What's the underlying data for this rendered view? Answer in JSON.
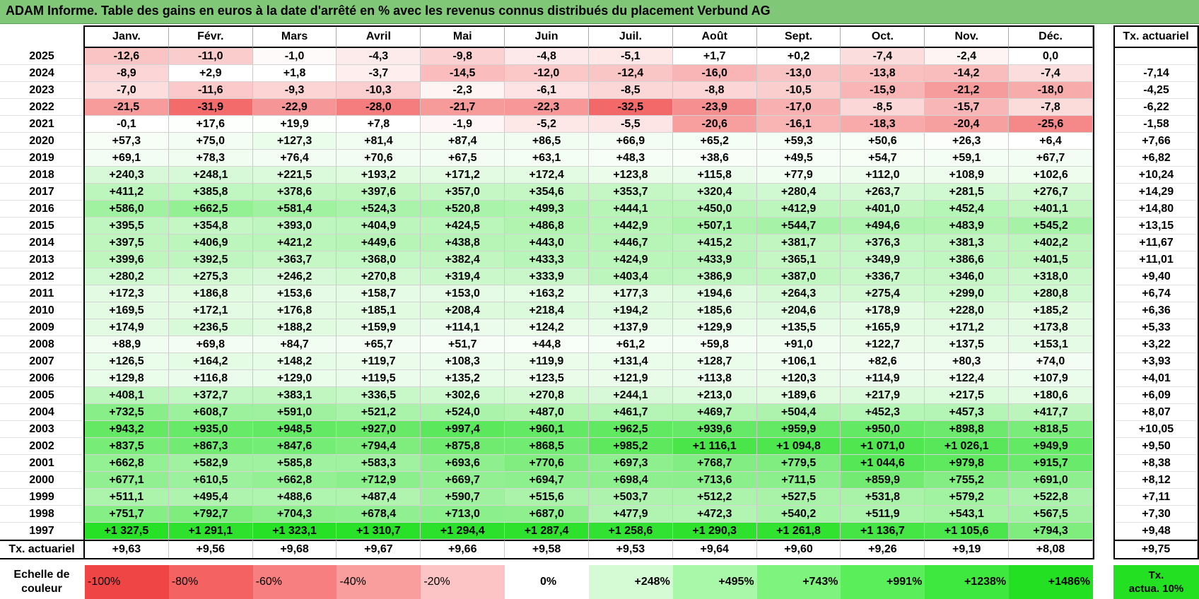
{
  "title": "ADAM Informe. Table des gains en euros à la date d'arrêté en % avec les revenus connus distribués du placement Verbund AG",
  "months": [
    "Janv.",
    "Févr.",
    "Mars",
    "Avril",
    "Mai",
    "Juin",
    "Juil.",
    "Août",
    "Sept.",
    "Oct.",
    "Nov.",
    "Déc."
  ],
  "actuarial_header": "Tx. actuariel",
  "rows": [
    {
      "year": "2025",
      "values": [
        "-12,6",
        "-11,0",
        "-1,0",
        "-4,3",
        "-9,8",
        "-4,8",
        "-5,1",
        "+1,7",
        "+0,2",
        "-7,4",
        "-2,4",
        "0,0"
      ],
      "act": ""
    },
    {
      "year": "2024",
      "values": [
        "-8,9",
        "+2,9",
        "+1,8",
        "-3,7",
        "-14,5",
        "-12,0",
        "-12,4",
        "-16,0",
        "-13,0",
        "-13,8",
        "-14,2",
        "-7,4"
      ],
      "act": "-7,14"
    },
    {
      "year": "2023",
      "values": [
        "-7,0",
        "-11,6",
        "-9,3",
        "-10,3",
        "-2,3",
        "-6,1",
        "-8,5",
        "-8,8",
        "-10,5",
        "-15,9",
        "-21,2",
        "-18,0"
      ],
      "act": "-4,25"
    },
    {
      "year": "2022",
      "values": [
        "-21,5",
        "-31,9",
        "-22,9",
        "-28,0",
        "-21,7",
        "-22,3",
        "-32,5",
        "-23,9",
        "-17,0",
        "-8,5",
        "-15,7",
        "-7,8"
      ],
      "act": "-6,22"
    },
    {
      "year": "2021",
      "values": [
        "-0,1",
        "+17,6",
        "+19,9",
        "+7,8",
        "-1,9",
        "-5,2",
        "-5,5",
        "-20,6",
        "-16,1",
        "-18,3",
        "-20,4",
        "-25,6"
      ],
      "act": "-1,58"
    },
    {
      "year": "2020",
      "values": [
        "+57,3",
        "+75,0",
        "+127,3",
        "+81,4",
        "+87,4",
        "+86,5",
        "+66,9",
        "+65,2",
        "+59,3",
        "+50,6",
        "+26,3",
        "+6,4"
      ],
      "act": "+7,66"
    },
    {
      "year": "2019",
      "values": [
        "+69,1",
        "+78,3",
        "+76,4",
        "+70,6",
        "+67,5",
        "+63,1",
        "+48,3",
        "+38,6",
        "+49,5",
        "+54,7",
        "+59,1",
        "+67,7"
      ],
      "act": "+6,82"
    },
    {
      "year": "2018",
      "values": [
        "+240,3",
        "+248,1",
        "+221,5",
        "+193,2",
        "+171,2",
        "+172,4",
        "+123,8",
        "+115,8",
        "+77,9",
        "+112,0",
        "+108,9",
        "+102,6"
      ],
      "act": "+10,24"
    },
    {
      "year": "2017",
      "values": [
        "+411,2",
        "+385,8",
        "+378,6",
        "+397,6",
        "+357,0",
        "+354,6",
        "+353,7",
        "+320,4",
        "+280,4",
        "+263,7",
        "+281,5",
        "+276,7"
      ],
      "act": "+14,29"
    },
    {
      "year": "2016",
      "values": [
        "+586,0",
        "+662,5",
        "+581,4",
        "+524,3",
        "+520,8",
        "+499,3",
        "+444,1",
        "+450,0",
        "+412,9",
        "+401,0",
        "+452,4",
        "+401,1"
      ],
      "act": "+14,80"
    },
    {
      "year": "2015",
      "values": [
        "+395,5",
        "+354,8",
        "+393,0",
        "+404,9",
        "+424,5",
        "+486,8",
        "+442,9",
        "+507,1",
        "+544,7",
        "+494,6",
        "+483,9",
        "+545,2"
      ],
      "act": "+13,15"
    },
    {
      "year": "2014",
      "values": [
        "+397,5",
        "+406,9",
        "+421,2",
        "+449,6",
        "+438,8",
        "+443,0",
        "+446,7",
        "+415,2",
        "+381,7",
        "+376,3",
        "+381,3",
        "+402,2"
      ],
      "act": "+11,67"
    },
    {
      "year": "2013",
      "values": [
        "+399,6",
        "+392,5",
        "+363,7",
        "+368,0",
        "+382,4",
        "+433,3",
        "+424,9",
        "+433,9",
        "+365,1",
        "+349,9",
        "+386,6",
        "+401,5"
      ],
      "act": "+11,01"
    },
    {
      "year": "2012",
      "values": [
        "+280,2",
        "+275,3",
        "+246,2",
        "+270,8",
        "+319,4",
        "+333,9",
        "+403,4",
        "+386,9",
        "+387,0",
        "+336,7",
        "+346,0",
        "+318,0"
      ],
      "act": "+9,40"
    },
    {
      "year": "2011",
      "values": [
        "+172,3",
        "+186,8",
        "+153,6",
        "+158,7",
        "+153,0",
        "+163,2",
        "+177,3",
        "+194,6",
        "+264,3",
        "+275,4",
        "+299,0",
        "+280,8"
      ],
      "act": "+6,74"
    },
    {
      "year": "2010",
      "values": [
        "+169,5",
        "+172,1",
        "+176,8",
        "+185,1",
        "+208,4",
        "+218,4",
        "+194,2",
        "+185,6",
        "+204,6",
        "+178,9",
        "+228,0",
        "+185,2"
      ],
      "act": "+6,36"
    },
    {
      "year": "2009",
      "values": [
        "+174,9",
        "+236,5",
        "+188,2",
        "+159,9",
        "+114,1",
        "+124,2",
        "+137,9",
        "+129,9",
        "+135,5",
        "+165,9",
        "+171,2",
        "+173,8"
      ],
      "act": "+5,33"
    },
    {
      "year": "2008",
      "values": [
        "+88,9",
        "+69,8",
        "+84,7",
        "+65,7",
        "+51,7",
        "+44,8",
        "+61,2",
        "+59,8",
        "+91,0",
        "+122,7",
        "+137,5",
        "+153,1"
      ],
      "act": "+3,22"
    },
    {
      "year": "2007",
      "values": [
        "+126,5",
        "+164,2",
        "+148,2",
        "+119,7",
        "+108,3",
        "+119,9",
        "+131,4",
        "+128,7",
        "+106,1",
        "+82,6",
        "+80,3",
        "+74,0"
      ],
      "act": "+3,93"
    },
    {
      "year": "2006",
      "values": [
        "+129,8",
        "+116,8",
        "+129,0",
        "+119,5",
        "+135,2",
        "+123,5",
        "+121,9",
        "+113,8",
        "+120,3",
        "+114,9",
        "+122,4",
        "+107,9"
      ],
      "act": "+4,01"
    },
    {
      "year": "2005",
      "values": [
        "+408,1",
        "+372,7",
        "+383,1",
        "+336,5",
        "+302,6",
        "+270,8",
        "+244,1",
        "+213,0",
        "+189,6",
        "+217,9",
        "+217,5",
        "+180,6"
      ],
      "act": "+6,09"
    },
    {
      "year": "2004",
      "values": [
        "+732,5",
        "+608,7",
        "+591,0",
        "+521,2",
        "+524,0",
        "+487,0",
        "+461,7",
        "+469,7",
        "+504,4",
        "+452,3",
        "+457,3",
        "+417,7"
      ],
      "act": "+8,07"
    },
    {
      "year": "2003",
      "values": [
        "+943,2",
        "+935,0",
        "+948,5",
        "+927,0",
        "+997,4",
        "+960,1",
        "+962,5",
        "+939,6",
        "+959,9",
        "+950,0",
        "+898,8",
        "+818,5"
      ],
      "act": "+10,05"
    },
    {
      "year": "2002",
      "values": [
        "+837,5",
        "+867,3",
        "+847,6",
        "+794,4",
        "+875,8",
        "+868,5",
        "+985,2",
        "+1 116,1",
        "+1 094,8",
        "+1 071,0",
        "+1 026,1",
        "+949,9"
      ],
      "act": "+9,50"
    },
    {
      "year": "2001",
      "values": [
        "+662,8",
        "+582,9",
        "+585,8",
        "+583,3",
        "+693,6",
        "+770,6",
        "+697,3",
        "+768,7",
        "+779,5",
        "+1 044,6",
        "+979,8",
        "+915,7"
      ],
      "act": "+8,38"
    },
    {
      "year": "2000",
      "values": [
        "+677,1",
        "+610,5",
        "+662,8",
        "+712,9",
        "+669,7",
        "+694,7",
        "+698,4",
        "+713,6",
        "+711,5",
        "+859,9",
        "+755,2",
        "+691,0"
      ],
      "act": "+8,12"
    },
    {
      "year": "1999",
      "values": [
        "+511,1",
        "+495,4",
        "+488,6",
        "+487,4",
        "+590,7",
        "+515,6",
        "+503,7",
        "+512,2",
        "+527,5",
        "+531,8",
        "+579,2",
        "+522,8"
      ],
      "act": "+7,11"
    },
    {
      "year": "1998",
      "values": [
        "+751,7",
        "+792,7",
        "+704,3",
        "+678,4",
        "+713,0",
        "+687,0",
        "+477,9",
        "+472,3",
        "+540,2",
        "+511,9",
        "+543,1",
        "+567,5"
      ],
      "act": "+7,30"
    },
    {
      "year": "1997",
      "values": [
        "+1 327,5",
        "+1 291,1",
        "+1 323,1",
        "+1 310,7",
        "+1 294,4",
        "+1 287,4",
        "+1 258,6",
        "+1 290,3",
        "+1 261,8",
        "+1 136,7",
        "+1 105,6",
        "+794,3"
      ],
      "act": "+9,48"
    }
  ],
  "totals": {
    "label": "Tx. actuariel",
    "values": [
      "+9,63",
      "+9,56",
      "+9,68",
      "+9,67",
      "+9,66",
      "+9,58",
      "+9,53",
      "+9,64",
      "+9,60",
      "+9,26",
      "+9,19",
      "+8,08"
    ],
    "act": "+9,75"
  },
  "scale": {
    "label_line1": "Echelle de",
    "label_line2": "couleur",
    "steps": [
      "-100%",
      "-80%",
      "-60%",
      "-40%",
      "-20%",
      "0%",
      "+248%",
      "+495%",
      "+743%",
      "+991%",
      "+1238%",
      "+1486%"
    ],
    "colors": [
      "#f04545",
      "#f46262",
      "#f77f7f",
      "#fa9d9d",
      "#fcc4c4",
      "#ffffff",
      "#d4fbd4",
      "#a9f7a9",
      "#7ef37e",
      "#5aef5a",
      "#3fe83f",
      "#23e023"
    ]
  },
  "act_note_line1": "Tx.",
  "act_note_line2": "actua. 10%",
  "colors": {
    "title_bg": "#80c878",
    "negative_max": "#f04545",
    "positive_max": "#23e023"
  }
}
